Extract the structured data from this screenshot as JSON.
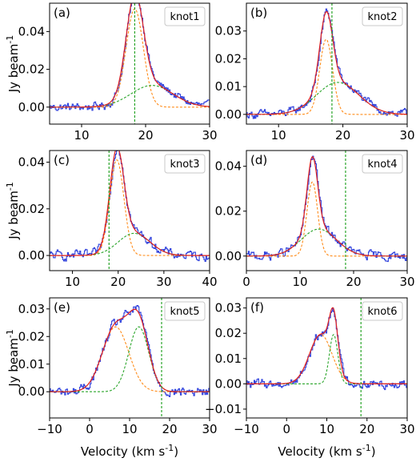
{
  "chart_data": [
    {
      "panel": "(a)",
      "knot": "knot1",
      "type": "line",
      "xlim": [
        5,
        30
      ],
      "ylim": [
        -0.009,
        0.055
      ],
      "xticks": [
        10,
        20,
        30
      ],
      "yticks": [
        0.0,
        0.02,
        0.04
      ],
      "ytick_labels": [
        "0.00",
        "0.02",
        "0.04"
      ],
      "vline": 18.3,
      "observed": {
        "color": "#3344dd",
        "noise": 0.0022
      },
      "components": [
        {
          "color": "#ff8c1a",
          "style": "dashed",
          "amp": 0.052,
          "center": 18.3,
          "sigma": 1.35
        },
        {
          "color": "#2aa52a",
          "style": "dashed",
          "amp": 0.0115,
          "center": 21.0,
          "sigma": 3.3
        }
      ],
      "total": {
        "color": "#e02020"
      },
      "ylabel": "Jy beam$^{-1}$",
      "xlabel": ""
    },
    {
      "panel": "(b)",
      "knot": "knot2",
      "type": "line",
      "xlim": [
        5,
        30
      ],
      "ylim": [
        -0.0035,
        0.04
      ],
      "xticks": [
        10,
        20,
        30
      ],
      "yticks": [
        0.0,
        0.01,
        0.02,
        0.03
      ],
      "ytick_labels": [
        "0.00",
        "0.01",
        "0.02",
        "0.03"
      ],
      "vline": 18.3,
      "observed": {
        "color": "#3344dd",
        "noise": 0.0015
      },
      "components": [
        {
          "color": "#ff8c1a",
          "style": "dashed",
          "amp": 0.027,
          "center": 17.4,
          "sigma": 1.0
        },
        {
          "color": "#2aa52a",
          "style": "dashed",
          "amp": 0.0115,
          "center": 19.2,
          "sigma": 3.3
        }
      ],
      "total": {
        "color": "#e02020"
      },
      "ylabel": "",
      "xlabel": ""
    },
    {
      "panel": "(c)",
      "knot": "knot3",
      "type": "line",
      "xlim": [
        5,
        40
      ],
      "ylim": [
        -0.0065,
        0.045
      ],
      "xticks": [
        10,
        20,
        30,
        40
      ],
      "yticks": [
        0.0,
        0.02,
        0.04
      ],
      "ytick_labels": [
        "0.00",
        "0.02",
        "0.04"
      ],
      "vline": 18.0,
      "observed": {
        "color": "#3344dd",
        "noise": 0.002
      },
      "components": [
        {
          "color": "#ff8c1a",
          "style": "dashed",
          "amp": 0.041,
          "center": 19.7,
          "sigma": 1.55
        },
        {
          "color": "#2aa52a",
          "style": "dashed",
          "amp": 0.0095,
          "center": 23.5,
          "sigma": 3.5
        }
      ],
      "total": {
        "color": "#e02020"
      },
      "ylabel": "Jy beam$^{-1}$",
      "xlabel": ""
    },
    {
      "panel": "(d)",
      "knot": "knot4",
      "type": "line",
      "xlim": [
        0,
        30
      ],
      "ylim": [
        -0.0065,
        0.047
      ],
      "xticks": [
        0,
        10,
        20,
        30
      ],
      "yticks": [
        0.0,
        0.02,
        0.04
      ],
      "ytick_labels": [
        "0.00",
        "0.02",
        "0.04"
      ],
      "vline": 18.5,
      "observed": {
        "color": "#3344dd",
        "noise": 0.002
      },
      "components": [
        {
          "color": "#ff8c1a",
          "style": "dashed",
          "amp": 0.033,
          "center": 12.3,
          "sigma": 1.0
        },
        {
          "color": "#2aa52a",
          "style": "dashed",
          "amp": 0.012,
          "center": 13.5,
          "sigma": 3.3
        }
      ],
      "total": {
        "color": "#e02020"
      },
      "ylabel": "",
      "xlabel": ""
    },
    {
      "panel": "(e)",
      "knot": "knot5",
      "type": "line",
      "xlim": [
        -10,
        30
      ],
      "ylim": [
        -0.0095,
        0.034
      ],
      "xticks": [
        -10,
        0,
        10,
        20,
        30
      ],
      "yticks": [
        0.0,
        0.01,
        0.02,
        0.03
      ],
      "ytick_labels": [
        "0.00",
        "0.01",
        "0.02",
        "0.03"
      ],
      "vline": 18.0,
      "observed": {
        "color": "#3344dd",
        "noise": 0.0018
      },
      "components": [
        {
          "color": "#ff8c1a",
          "style": "dashed",
          "amp": 0.0235,
          "center": 6.5,
          "sigma": 3.3
        },
        {
          "color": "#2aa52a",
          "style": "dashed",
          "amp": 0.0235,
          "center": 12.3,
          "sigma": 2.5
        }
      ],
      "total": {
        "color": "#e02020"
      },
      "ylabel": "Jy beam$^{-1}$",
      "xlabel": "Velocity (km s$^{-1}$)"
    },
    {
      "panel": "(f)",
      "knot": "knot6",
      "type": "line",
      "xlim": [
        -10,
        30
      ],
      "ylim": [
        -0.0135,
        0.034
      ],
      "xticks": [
        -10,
        0,
        10,
        20,
        30
      ],
      "yticks": [
        -0.01,
        0.0,
        0.01,
        0.02,
        0.03
      ],
      "ytick_labels": [
        "−0.01",
        "0.00",
        "0.01",
        "0.02",
        "0.03"
      ],
      "vline": 18.5,
      "observed": {
        "color": "#3344dd",
        "noise": 0.0018
      },
      "components": [
        {
          "color": "#ff8c1a",
          "style": "dashed",
          "amp": 0.0195,
          "center": 8.5,
          "sigma": 2.8
        },
        {
          "color": "#2aa52a",
          "style": "dashed",
          "amp": 0.0195,
          "center": 11.7,
          "sigma": 1.05
        }
      ],
      "total": {
        "color": "#e02020"
      },
      "ylabel": "",
      "xlabel": "Velocity (km s$^{-1}$)"
    }
  ],
  "colors": {
    "vline": "#2aa52a",
    "observed": "#3344dd",
    "total": "#e02020",
    "narrow": "#ff8c1a",
    "broad": "#2aa52a"
  }
}
